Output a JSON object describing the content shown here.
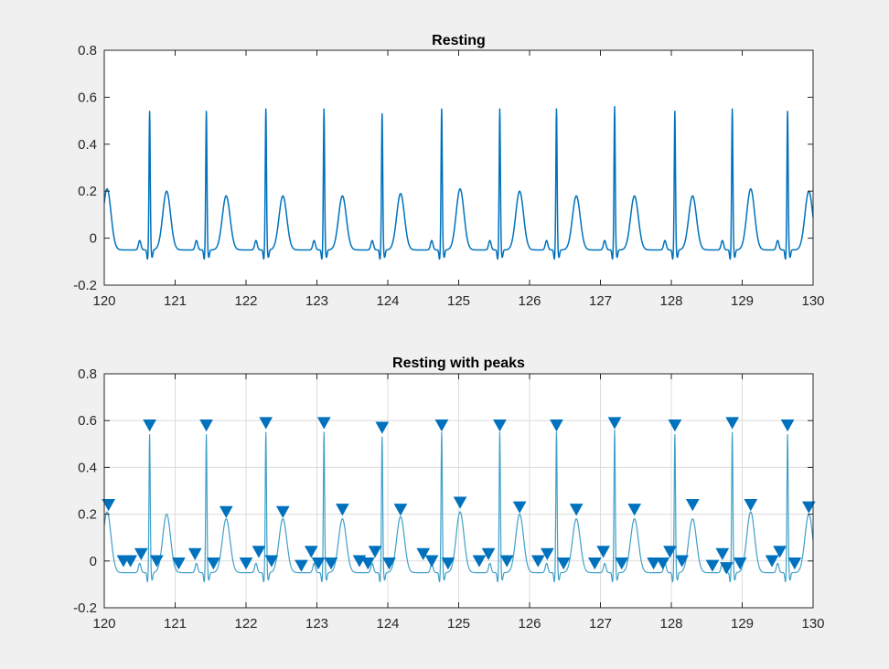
{
  "figure": {
    "background": "#f0f0f0",
    "axes_color": "#262626",
    "grid_color": "#dcdcdc"
  },
  "chart_data": [
    {
      "type": "line",
      "title": "Resting",
      "xlabel": "",
      "ylabel": "",
      "xlim": [
        120,
        130
      ],
      "ylim": [
        -0.2,
        0.8
      ],
      "xticks": [
        "120",
        "121",
        "122",
        "123",
        "124",
        "125",
        "126",
        "127",
        "128",
        "129",
        "130"
      ],
      "yticks": [
        "-0.2",
        "0",
        "0.2",
        "0.4",
        "0.6",
        "0.8"
      ],
      "grid": false,
      "series": [
        {
          "color": "#0072bd",
          "r_peak_times": [
            120.64,
            121.44,
            122.28,
            123.1,
            123.92,
            124.76,
            125.58,
            126.38,
            127.2,
            128.05,
            128.86,
            129.64
          ],
          "r_peak_values": [
            0.54,
            0.54,
            0.55,
            0.55,
            0.53,
            0.55,
            0.55,
            0.55,
            0.56,
            0.54,
            0.55,
            0.54
          ],
          "t_wave_times": [
            120.04,
            120.88,
            121.72,
            122.52,
            123.36,
            124.18,
            125.02,
            125.86,
            126.66,
            127.48,
            128.3,
            129.12,
            129.94
          ],
          "t_wave_values": [
            0.21,
            0.2,
            0.18,
            0.18,
            0.18,
            0.19,
            0.21,
            0.2,
            0.18,
            0.18,
            0.18,
            0.21,
            0.2
          ],
          "baseline": -0.05,
          "q_depth": -0.09,
          "p_wave_height": -0.01
        }
      ]
    },
    {
      "type": "line",
      "title": "Resting with peaks",
      "xlabel": "",
      "ylabel": "",
      "xlim": [
        120,
        130
      ],
      "ylim": [
        -0.2,
        0.8
      ],
      "xticks": [
        "120",
        "121",
        "122",
        "123",
        "124",
        "125",
        "126",
        "127",
        "128",
        "129",
        "130"
      ],
      "yticks": [
        "-0.2",
        "0",
        "0.2",
        "0.4",
        "0.6",
        "0.8"
      ],
      "grid": true,
      "series": [
        {
          "color": "#3fa0c8",
          "same_signal_as": "Resting"
        },
        {
          "type": "scatter",
          "marker": "downward-triangle",
          "color": "#0072bd",
          "x": [
            120.06,
            120.27,
            120.37,
            120.52,
            120.64,
            120.74,
            121.05,
            121.28,
            121.44,
            121.54,
            121.72,
            122.0,
            122.18,
            122.28,
            122.36,
            122.52,
            122.78,
            122.92,
            123.02,
            123.1,
            123.2,
            123.36,
            123.6,
            123.72,
            123.82,
            123.92,
            124.02,
            124.18,
            124.5,
            124.62,
            124.76,
            124.85,
            125.02,
            125.29,
            125.42,
            125.58,
            125.68,
            125.86,
            126.12,
            126.25,
            126.38,
            126.48,
            126.66,
            126.92,
            127.04,
            127.2,
            127.3,
            127.48,
            127.75,
            127.88,
            127.98,
            128.05,
            128.15,
            128.3,
            128.58,
            128.72,
            128.78,
            128.86,
            128.97,
            129.12,
            129.42,
            129.53,
            129.64,
            129.74,
            129.94
          ],
          "values": [
            0.24,
            0.0,
            0.0,
            0.03,
            0.58,
            0.0,
            -0.01,
            0.03,
            0.58,
            -0.01,
            0.21,
            -0.01,
            0.04,
            0.59,
            0.0,
            0.21,
            -0.02,
            0.04,
            -0.01,
            0.59,
            -0.01,
            0.22,
            0.0,
            -0.01,
            0.04,
            0.57,
            -0.01,
            0.22,
            0.03,
            0.0,
            0.58,
            -0.01,
            0.25,
            0.0,
            0.03,
            0.58,
            0.0,
            0.23,
            0.0,
            0.03,
            0.58,
            -0.01,
            0.22,
            -0.01,
            0.04,
            0.59,
            -0.01,
            0.22,
            -0.01,
            -0.01,
            0.04,
            0.58,
            0.0,
            0.24,
            -0.02,
            0.03,
            -0.03,
            0.59,
            -0.01,
            0.24,
            0.0,
            0.04,
            0.58,
            -0.01,
            0.23
          ]
        }
      ]
    }
  ]
}
